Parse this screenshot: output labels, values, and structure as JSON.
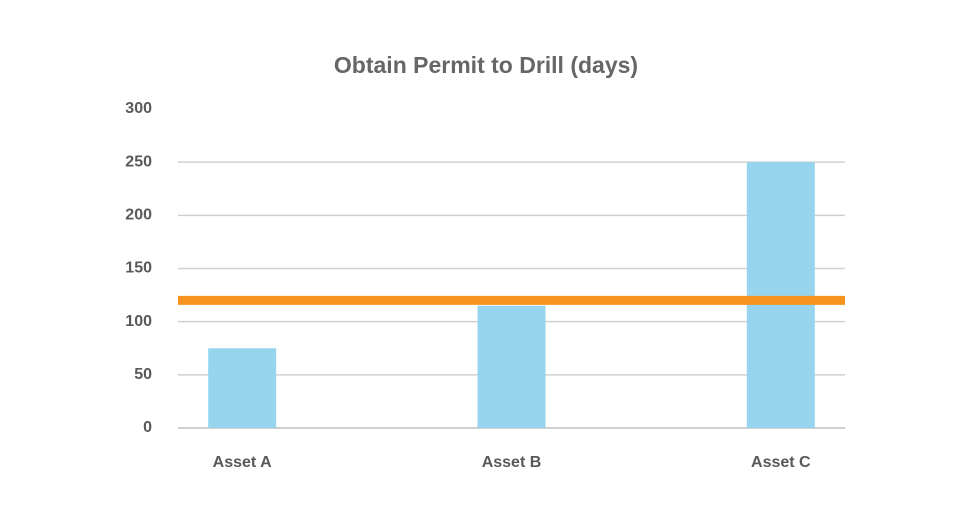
{
  "chart_data": {
    "type": "bar",
    "title": "Obtain Permit to Drill (days)",
    "categories": [
      "Asset A",
      "Asset B",
      "Asset C"
    ],
    "values": [
      75,
      115,
      250
    ],
    "color": "#97d5ee",
    "ylim": [
      0,
      300
    ],
    "yticks": [
      0,
      50,
      100,
      150,
      200,
      250,
      300
    ],
    "grid": true,
    "reference_line": {
      "value": 120,
      "color": "#f7921e"
    }
  }
}
